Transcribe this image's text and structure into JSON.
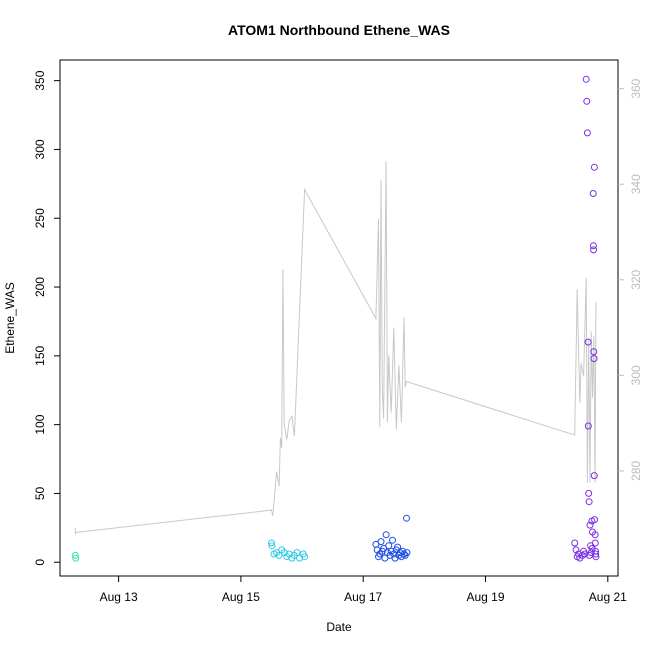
{
  "chart_data": {
    "type": "scatter",
    "title": "ATOM1 Northbound Ethene_WAS",
    "xlabel": "Date",
    "ylabel": "Ethene_WAS",
    "y2label": "",
    "x_ticks": [
      {
        "date": "2015-08-13",
        "label": "Aug 13"
      },
      {
        "date": "2015-08-15",
        "label": "Aug 15"
      },
      {
        "date": "2015-08-17",
        "label": "Aug 17"
      },
      {
        "date": "2015-08-19",
        "label": "Aug 19"
      },
      {
        "date": "2015-08-21",
        "label": "Aug 21"
      }
    ],
    "xlim": [
      "2015-08-12 01:00",
      "2015-08-21 04:00"
    ],
    "ylim": [
      -10,
      365
    ],
    "y_ticks": [
      0,
      50,
      100,
      150,
      200,
      250,
      300,
      350
    ],
    "y2lim": [
      258,
      366
    ],
    "y2_ticks": [
      280,
      300,
      320,
      340,
      360
    ],
    "point_series": [
      {
        "color": "#3ee6a8",
        "points": [
          [
            "2015-08-12 07:00",
            5
          ],
          [
            "2015-08-12 07:10",
            3
          ]
        ]
      },
      {
        "color": "#2fc9e6",
        "points": [
          [
            "2015-08-15 12:00",
            14
          ],
          [
            "2015-08-15 12:10",
            12
          ],
          [
            "2015-08-15 13:00",
            6
          ],
          [
            "2015-08-15 14:00",
            7
          ],
          [
            "2015-08-15 15:00",
            5
          ],
          [
            "2015-08-15 16:00",
            9
          ],
          [
            "2015-08-15 17:00",
            7
          ],
          [
            "2015-08-15 18:00",
            4
          ],
          [
            "2015-08-15 19:00",
            6
          ],
          [
            "2015-08-15 20:00",
            3
          ],
          [
            "2015-08-15 21:00",
            5
          ],
          [
            "2015-08-15 22:00",
            7
          ],
          [
            "2015-08-15 23:00",
            3
          ],
          [
            "2015-08-16 00:30",
            6
          ],
          [
            "2015-08-16 01:00",
            4
          ]
        ]
      },
      {
        "color": "#1f4fe6",
        "points": [
          [
            "2015-08-17 05:00",
            13
          ],
          [
            "2015-08-17 05:30",
            9
          ],
          [
            "2015-08-17 06:00",
            4
          ],
          [
            "2015-08-17 06:30",
            6
          ],
          [
            "2015-08-17 07:00",
            15
          ],
          [
            "2015-08-17 07:30",
            8
          ],
          [
            "2015-08-17 08:00",
            10
          ],
          [
            "2015-08-17 08:30",
            3
          ],
          [
            "2015-08-17 09:00",
            20
          ],
          [
            "2015-08-17 09:30",
            7
          ],
          [
            "2015-08-17 10:00",
            12
          ],
          [
            "2015-08-17 10:30",
            5
          ],
          [
            "2015-08-17 11:00",
            8
          ],
          [
            "2015-08-17 11:30",
            16
          ],
          [
            "2015-08-17 12:00",
            6
          ],
          [
            "2015-08-17 12:30",
            3
          ],
          [
            "2015-08-17 13:00",
            9
          ],
          [
            "2015-08-17 13:30",
            11
          ],
          [
            "2015-08-17 14:00",
            5
          ],
          [
            "2015-08-17 14:30",
            7
          ],
          [
            "2015-08-17 15:00",
            4
          ],
          [
            "2015-08-17 15:30",
            8
          ],
          [
            "2015-08-17 16:00",
            6
          ],
          [
            "2015-08-17 16:30",
            5
          ],
          [
            "2015-08-17 17:00",
            32
          ],
          [
            "2015-08-17 17:10",
            7
          ]
        ]
      },
      {
        "color": "#7b2fe6",
        "points": [
          [
            "2015-08-20 11:00",
            14
          ],
          [
            "2015-08-20 11:30",
            9
          ],
          [
            "2015-08-20 12:00",
            4
          ],
          [
            "2015-08-20 12:30",
            6
          ],
          [
            "2015-08-20 13:00",
            3
          ],
          [
            "2015-08-20 14:00",
            5
          ],
          [
            "2015-08-20 14:30",
            8
          ],
          [
            "2015-08-20 15:00",
            6
          ],
          [
            "2015-08-20 15:30",
            351
          ],
          [
            "2015-08-20 15:45",
            335
          ],
          [
            "2015-08-20 16:00",
            312
          ],
          [
            "2015-08-20 16:15",
            160
          ],
          [
            "2015-08-20 16:20",
            99
          ],
          [
            "2015-08-20 16:30",
            50
          ],
          [
            "2015-08-20 16:40",
            44
          ],
          [
            "2015-08-20 17:00",
            27
          ],
          [
            "2015-08-20 17:15",
            12
          ],
          [
            "2015-08-20 17:30",
            7
          ],
          [
            "2015-08-20 17:45",
            30
          ],
          [
            "2015-08-20 18:00",
            22
          ],
          [
            "2015-08-20 18:15",
            268
          ],
          [
            "2015-08-20 18:20",
            230
          ],
          [
            "2015-08-20 18:25",
            227
          ],
          [
            "2015-08-20 18:30",
            153
          ],
          [
            "2015-08-20 18:35",
            148
          ],
          [
            "2015-08-20 18:40",
            63
          ],
          [
            "2015-08-20 18:45",
            287
          ],
          [
            "2015-08-20 19:00",
            20
          ],
          [
            "2015-08-20 19:05",
            14
          ],
          [
            "2015-08-20 19:10",
            8
          ],
          [
            "2015-08-20 19:15",
            6
          ],
          [
            "2015-08-20 19:20",
            4
          ],
          [
            "2015-08-20 17:50",
            10
          ],
          [
            "2015-08-20 16:50",
            5
          ],
          [
            "2015-08-20 18:50",
            31
          ]
        ]
      }
    ],
    "line_series": {
      "color": "#c8c8c8",
      "axis": "right",
      "points": [
        [
          "2015-08-12 07:00",
          268.0
        ],
        [
          "2015-08-12 07:05",
          266.7
        ],
        [
          "2015-08-12 07:10",
          267.1
        ],
        [
          "2015-08-15 12:00",
          271.8
        ],
        [
          "2015-08-15 12:30",
          270.6
        ],
        [
          "2015-08-15 14:00",
          279.8
        ],
        [
          "2015-08-15 15:00",
          276.8
        ],
        [
          "2015-08-15 15:30",
          286.9
        ],
        [
          "2015-08-15 16:00",
          284.8
        ],
        [
          "2015-08-15 16:30",
          322.2
        ],
        [
          "2015-08-15 17:00",
          289.6
        ],
        [
          "2015-08-15 18:00",
          286.6
        ],
        [
          "2015-08-15 19:00",
          290.6
        ],
        [
          "2015-08-15 20:00",
          291.4
        ],
        [
          "2015-08-15 21:00",
          287.3
        ],
        [
          "2015-08-16 01:00",
          338.9
        ],
        [
          "2015-08-17 05:00",
          311.9
        ],
        [
          "2015-08-17 06:00",
          332.7
        ],
        [
          "2015-08-17 06:30",
          289.1
        ],
        [
          "2015-08-17 07:00",
          340.9
        ],
        [
          "2015-08-17 07:30",
          297.1
        ],
        [
          "2015-08-17 08:00",
          291.0
        ],
        [
          "2015-08-17 09:00",
          344.8
        ],
        [
          "2015-08-17 09:30",
          290.2
        ],
        [
          "2015-08-17 10:00",
          304.2
        ],
        [
          "2015-08-17 11:00",
          292.2
        ],
        [
          "2015-08-17 12:00",
          310.0
        ],
        [
          "2015-08-17 13:00",
          288.7
        ],
        [
          "2015-08-17 14:00",
          302.1
        ],
        [
          "2015-08-17 15:00",
          290.2
        ],
        [
          "2015-08-17 16:00",
          312.1
        ],
        [
          "2015-08-17 16:30",
          297.5
        ],
        [
          "2015-08-17 17:00",
          298.7
        ],
        [
          "2015-08-20 11:00",
          287.5
        ],
        [
          "2015-08-20 12:00",
          318.0
        ],
        [
          "2015-08-20 13:00",
          294.2
        ],
        [
          "2015-08-20 13:30",
          302.5
        ],
        [
          "2015-08-20 14:30",
          299.8
        ],
        [
          "2015-08-20 15:30",
          320.4
        ],
        [
          "2015-08-20 16:00",
          277.5
        ],
        [
          "2015-08-20 16:30",
          307.5
        ],
        [
          "2015-08-20 17:00",
          277.5
        ],
        [
          "2015-08-20 17:30",
          309.2
        ],
        [
          "2015-08-20 18:00",
          295.3
        ],
        [
          "2015-08-20 18:30",
          308.2
        ],
        [
          "2015-08-20 19:00",
          277.5
        ],
        [
          "2015-08-20 19:20",
          315.3
        ]
      ]
    },
    "grid": false,
    "legend": "none"
  }
}
